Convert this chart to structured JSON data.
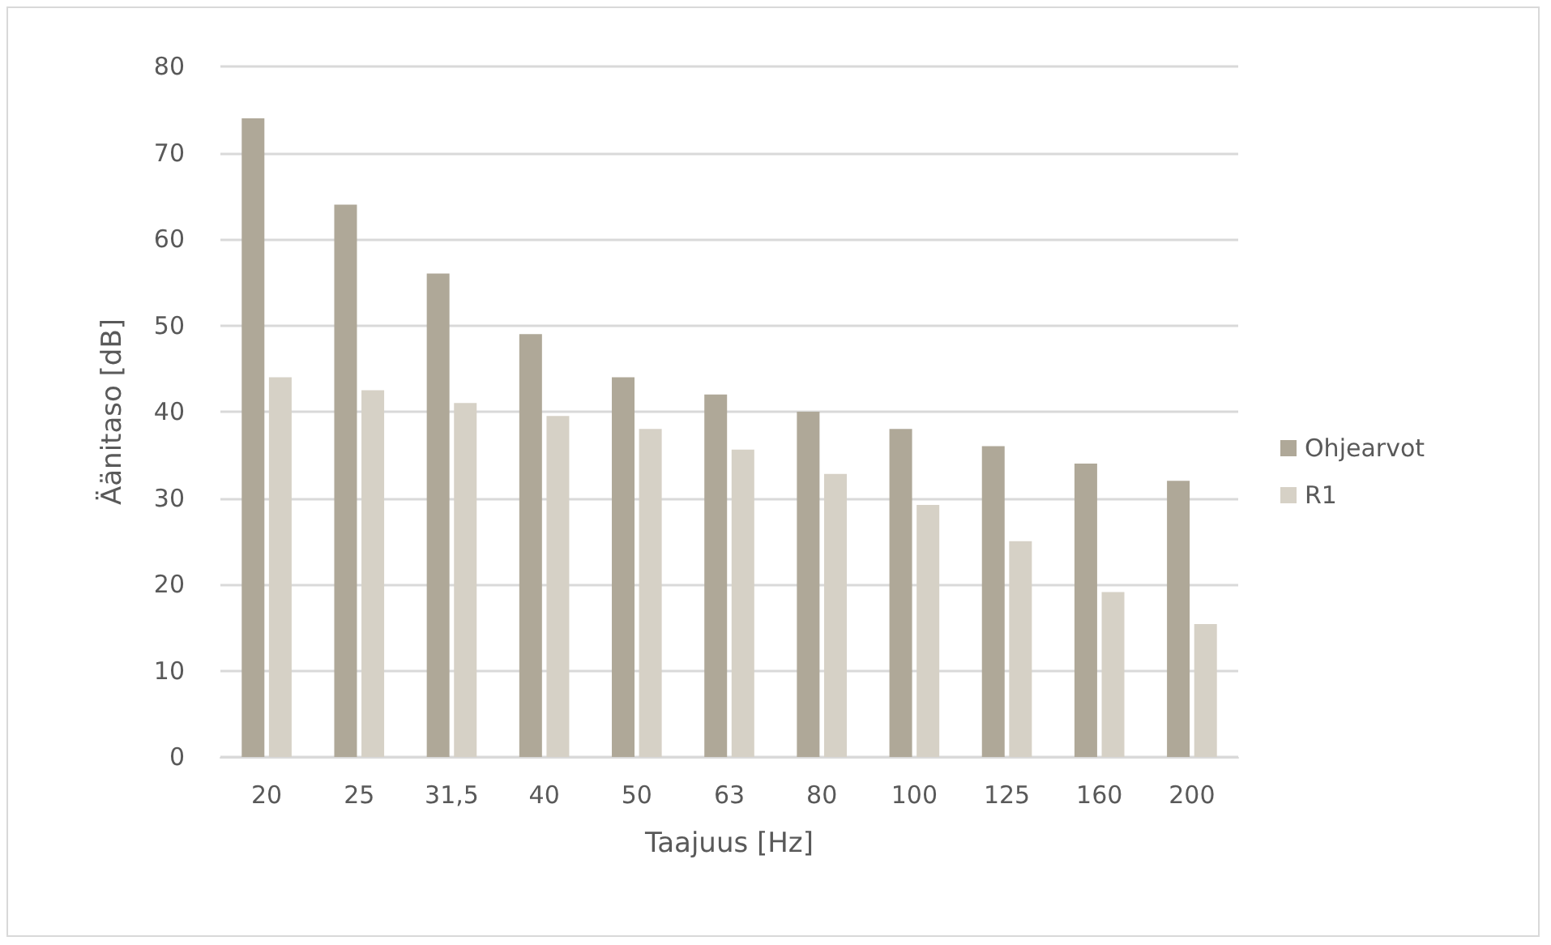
{
  "chart_data": {
    "type": "bar",
    "xlabel": "Taajuus [Hz]",
    "ylabel": "Äänitaso [dB]",
    "categories": [
      "20",
      "25",
      "31,5",
      "40",
      "50",
      "63",
      "80",
      "100",
      "125",
      "160",
      "200"
    ],
    "series": [
      {
        "name": "Ohjearvot",
        "color": "#afa898",
        "values": [
          74,
          64,
          56,
          49,
          44,
          42,
          40,
          38,
          36,
          34,
          32
        ]
      },
      {
        "name": "R1",
        "color": "#d6d1c6",
        "values": [
          44,
          42.5,
          41,
          39.5,
          38,
          35.6,
          32.8,
          29.2,
          25,
          19.1,
          15.4
        ]
      }
    ],
    "ylim": [
      0,
      80
    ],
    "yticks": [
      0,
      10,
      20,
      30,
      40,
      50,
      60,
      70,
      80
    ],
    "grid": "y",
    "legend": "right"
  }
}
